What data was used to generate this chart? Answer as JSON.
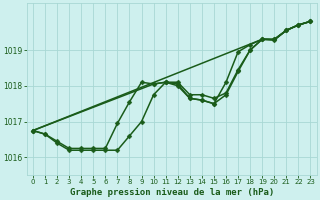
{
  "title": "Graphe pression niveau de la mer (hPa)",
  "bg_color": "#cef0ee",
  "grid_color": "#a8d8d4",
  "line_color": "#1a5c1a",
  "xmin": -0.5,
  "xmax": 23.5,
  "ymin": 1015.5,
  "ymax": 1020.3,
  "yticks": [
    1016,
    1017,
    1018,
    1019
  ],
  "xticks": [
    0,
    1,
    2,
    3,
    4,
    5,
    6,
    7,
    8,
    9,
    10,
    11,
    12,
    13,
    14,
    15,
    16,
    17,
    18,
    19,
    20,
    21,
    22,
    23
  ],
  "series": [
    {
      "x": [
        0,
        1,
        2,
        3,
        4,
        5,
        6,
        7,
        8,
        9,
        10,
        11,
        12,
        13,
        14,
        15,
        16,
        17,
        18,
        19,
        20,
        21,
        22,
        23
      ],
      "y": [
        1016.75,
        1016.65,
        1016.4,
        1016.2,
        1016.2,
        1016.2,
        1016.2,
        1016.2,
        1016.6,
        1017.0,
        1017.75,
        1018.1,
        1018.1,
        1017.75,
        1017.75,
        1017.65,
        1017.8,
        1018.45,
        1019.0,
        1019.3,
        1019.3,
        1019.55,
        1019.7,
        1019.8
      ]
    },
    {
      "x": [
        0,
        1,
        2,
        3,
        4,
        5,
        6,
        7,
        8,
        9,
        10,
        11,
        12,
        13,
        14,
        15,
        16,
        17,
        18,
        19,
        20,
        21,
        22,
        23
      ],
      "y": [
        1016.75,
        1016.65,
        1016.45,
        1016.25,
        1016.25,
        1016.25,
        1016.25,
        1016.95,
        1017.55,
        1018.1,
        1018.05,
        1018.1,
        1018.0,
        1017.65,
        1017.6,
        1017.5,
        1018.1,
        1018.95,
        1019.15,
        1019.3,
        1019.3,
        1019.55,
        1019.7,
        1019.8
      ]
    },
    {
      "x": [
        0,
        10,
        11,
        12,
        13,
        14,
        15,
        16,
        17,
        18,
        19,
        20,
        21,
        22,
        23
      ],
      "y": [
        1016.75,
        1018.05,
        1018.1,
        1018.05,
        1017.65,
        1017.6,
        1017.5,
        1017.75,
        1018.4,
        1019.0,
        1019.3,
        1019.28,
        1019.55,
        1019.7,
        1019.8
      ]
    },
    {
      "x": [
        0,
        19,
        20,
        21,
        22,
        23
      ],
      "y": [
        1016.75,
        1019.3,
        1019.28,
        1019.55,
        1019.7,
        1019.8
      ]
    }
  ]
}
